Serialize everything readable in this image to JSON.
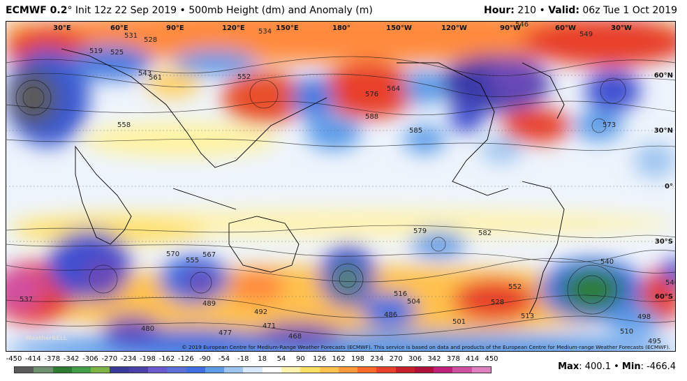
{
  "header": {
    "model": "ECMWF 0.2",
    "degree": "°",
    "init": "Init 12z 22 Sep 2019",
    "sep": "•",
    "product": "500mb Height (dm) and Anomaly (m)",
    "hour_label": "Hour:",
    "hour_value": "210",
    "valid_label": "Valid:",
    "valid_value": "06z Tue 1 Oct 2019"
  },
  "map": {
    "longitude_labels": [
      "30°E",
      "60°E",
      "90°E",
      "120°E",
      "150°E",
      "180°",
      "150°W",
      "120°W",
      "90°W",
      "60°W",
      "30°W"
    ],
    "latitude_labels": [
      "60°N",
      "30°N",
      "0°",
      "30°S",
      "60°S"
    ],
    "contour_values": [
      "519",
      "525",
      "531",
      "528",
      "534",
      "543",
      "546",
      "549",
      "561",
      "552",
      "558",
      "576",
      "564",
      "588",
      "585",
      "570",
      "567",
      "555",
      "537",
      "582",
      "579",
      "573",
      "489",
      "480",
      "477",
      "471",
      "468",
      "492",
      "486",
      "495",
      "504",
      "501",
      "513",
      "516",
      "528",
      "552",
      "540",
      "546",
      "498",
      "510"
    ],
    "copyright": "© 2019 European Centre for Medium-Range Weather Forecasts (ECMWF). This service is based on data and products of the European Centre for Medium-range Weather Forecasts (ECMWF).",
    "watermark": "WeatherBELL"
  },
  "scale": {
    "ticks": [
      "-450",
      "-414",
      "-378",
      "-342",
      "-306",
      "-270",
      "-234",
      "-198",
      "-162",
      "-126",
      "-90",
      "-54",
      "-18",
      "18",
      "54",
      "90",
      "126",
      "162",
      "198",
      "234",
      "270",
      "306",
      "342",
      "378",
      "414",
      "450"
    ],
    "colors": [
      "#5a5a5a",
      "#6f8f6f",
      "#2e7d32",
      "#43a047",
      "#7cb342",
      "#3a3a9a",
      "#4b3fa8",
      "#6a5acd",
      "#5d6fd8",
      "#3f6fe0",
      "#5b9be8",
      "#9ec5f0",
      "#d8e9fb",
      "#ffffff",
      "#fff3b0",
      "#ffe066",
      "#ffc14d",
      "#ff9a3c",
      "#ff6a2a",
      "#e8402a",
      "#c8202a",
      "#b0103a",
      "#c0207a",
      "#d050a0",
      "#e080c0"
    ]
  },
  "stats": {
    "max_label": "Max",
    "max_value": ": 400.1",
    "sep": "•",
    "min_label": "Min",
    "min_value": ": -466.4"
  }
}
